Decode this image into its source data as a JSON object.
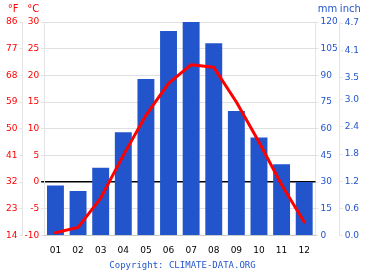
{
  "chart_data": {
    "type": "bar",
    "categories": [
      "01",
      "02",
      "03",
      "04",
      "05",
      "06",
      "07",
      "08",
      "09",
      "10",
      "11",
      "12"
    ],
    "series": [
      {
        "type": "bar",
        "color": "#2255cc",
        "axis": "y2",
        "values": [
          28,
          25,
          38,
          58,
          88,
          115,
          120,
          108,
          70,
          55,
          40,
          30
        ]
      },
      {
        "type": "line",
        "color": "#ff0000",
        "values": [
          -9.5,
          -8.5,
          -3.0,
          5.0,
          12.5,
          18.5,
          22.0,
          21.5,
          15.0,
          7.5,
          -0.5,
          -7.5
        ]
      }
    ],
    "ylabel": "°C",
    "ylim": [
      -10,
      30
    ],
    "yticks": [
      -10,
      -5,
      0,
      5,
      10,
      15,
      20,
      25,
      30
    ],
    "y2label": "mm",
    "y2lim": [
      0,
      120
    ],
    "y2ticks": [
      0,
      15,
      30,
      45,
      60,
      75,
      90,
      105,
      120
    ],
    "y3label": "°F",
    "y3lim": [
      14,
      86
    ],
    "y3ticks": [
      14,
      23,
      32,
      41,
      50,
      59,
      68,
      77,
      86
    ],
    "y4label": "inch",
    "y4lim": [
      0,
      4.724409448818898
    ],
    "y4ticks": [
      {
        "value": 0,
        "label": "0.0"
      },
      0.6,
      1.2,
      1.8,
      2.4,
      {
        "value": 3,
        "label": "3.0"
      },
      3.5,
      4.1,
      4.7
    ],
    "annotations": [
      {
        "text": "Copyright: CLIMATE-DATA.ORG",
        "color": "#2255cc"
      }
    ],
    "grid": true
  }
}
